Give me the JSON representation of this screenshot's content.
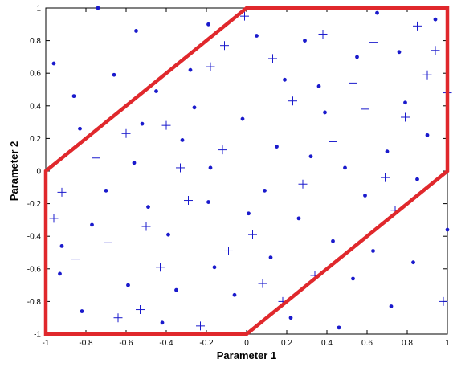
{
  "chart_data": {
    "type": "scatter",
    "title": "",
    "xlabel": "Parameter 1",
    "ylabel": "Parameter 2",
    "xlim": [
      -1,
      1
    ],
    "ylim": [
      -1,
      1
    ],
    "xticks": [
      "-1",
      "-0.8",
      "-0.6",
      "-0.4",
      "-0.2",
      "0",
      "0.2",
      "0.4",
      "0.6",
      "0.8",
      "1"
    ],
    "yticks": [
      "-1",
      "-0.8",
      "-0.6",
      "-0.4",
      "-0.2",
      "0",
      "0.2",
      "0.4",
      "0.6",
      "0.8",
      "1"
    ],
    "grid": false,
    "marker_color": "#1a1acc",
    "region_color": "#e0282c",
    "series": [
      {
        "marker": "dot",
        "points": [
          [
            -0.74,
            1.0
          ],
          [
            -0.19,
            0.9
          ],
          [
            -0.55,
            0.86
          ],
          [
            0.05,
            0.83
          ],
          [
            0.29,
            0.8
          ],
          [
            0.65,
            0.97
          ],
          [
            0.94,
            0.93
          ],
          [
            -0.96,
            0.66
          ],
          [
            -0.66,
            0.59
          ],
          [
            -0.28,
            0.62
          ],
          [
            0.19,
            0.56
          ],
          [
            0.36,
            0.52
          ],
          [
            0.55,
            0.7
          ],
          [
            0.76,
            0.73
          ],
          [
            -0.86,
            0.46
          ],
          [
            -0.45,
            0.49
          ],
          [
            -0.26,
            0.39
          ],
          [
            0.39,
            0.36
          ],
          [
            0.79,
            0.42
          ],
          [
            -0.83,
            0.26
          ],
          [
            -0.52,
            0.29
          ],
          [
            -0.02,
            0.32
          ],
          [
            0.15,
            0.15
          ],
          [
            -0.32,
            0.19
          ],
          [
            0.32,
            0.09
          ],
          [
            0.7,
            0.12
          ],
          [
            0.9,
            0.22
          ],
          [
            -0.56,
            0.05
          ],
          [
            -0.18,
            0.02
          ],
          [
            0.49,
            0.02
          ],
          [
            0.85,
            -0.05
          ],
          [
            -0.7,
            -0.12
          ],
          [
            -0.19,
            -0.19
          ],
          [
            0.09,
            -0.12
          ],
          [
            0.59,
            -0.15
          ],
          [
            -0.49,
            -0.22
          ],
          [
            -0.77,
            -0.33
          ],
          [
            0.01,
            -0.26
          ],
          [
            0.26,
            -0.29
          ],
          [
            -0.39,
            -0.39
          ],
          [
            -0.92,
            -0.46
          ],
          [
            -0.16,
            -0.59
          ],
          [
            0.12,
            -0.53
          ],
          [
            0.43,
            -0.43
          ],
          [
            0.63,
            -0.49
          ],
          [
            1.0,
            -0.36
          ],
          [
            -0.93,
            -0.63
          ],
          [
            -0.59,
            -0.7
          ],
          [
            -0.35,
            -0.73
          ],
          [
            -0.06,
            -0.76
          ],
          [
            0.53,
            -0.66
          ],
          [
            0.83,
            -0.56
          ],
          [
            -0.82,
            -0.86
          ],
          [
            0.72,
            -0.83
          ],
          [
            -0.42,
            -0.93
          ],
          [
            0.22,
            -0.9
          ],
          [
            0.46,
            -0.96
          ]
        ]
      },
      {
        "marker": "plus",
        "points": [
          [
            -0.01,
            0.95
          ],
          [
            -0.11,
            0.77
          ],
          [
            0.13,
            0.69
          ],
          [
            0.38,
            0.84
          ],
          [
            0.63,
            0.79
          ],
          [
            0.85,
            0.89
          ],
          [
            0.94,
            0.74
          ],
          [
            -0.18,
            0.64
          ],
          [
            0.53,
            0.54
          ],
          [
            0.9,
            0.59
          ],
          [
            0.23,
            0.43
          ],
          [
            -0.4,
            0.28
          ],
          [
            0.59,
            0.38
          ],
          [
            0.79,
            0.33
          ],
          [
            -0.6,
            0.23
          ],
          [
            -0.12,
            0.13
          ],
          [
            0.43,
            0.18
          ],
          [
            -0.75,
            0.08
          ],
          [
            -0.33,
            0.02
          ],
          [
            0.69,
            -0.04
          ],
          [
            -0.92,
            -0.13
          ],
          [
            -0.29,
            -0.18
          ],
          [
            0.28,
            -0.08
          ],
          [
            -0.96,
            -0.29
          ],
          [
            -0.5,
            -0.34
          ],
          [
            0.74,
            -0.24
          ],
          [
            0.03,
            -0.39
          ],
          [
            -0.69,
            -0.44
          ],
          [
            -0.09,
            -0.49
          ],
          [
            -0.85,
            -0.54
          ],
          [
            -0.43,
            -0.59
          ],
          [
            0.34,
            -0.64
          ],
          [
            0.08,
            -0.69
          ],
          [
            0.98,
            -0.8
          ],
          [
            -0.53,
            -0.85
          ],
          [
            0.18,
            -0.8
          ],
          [
            -0.64,
            -0.9
          ],
          [
            -0.23,
            -0.95
          ],
          [
            1.0,
            0.48
          ]
        ]
      }
    ],
    "region": [
      [
        0,
        1
      ],
      [
        1,
        1
      ],
      [
        1,
        0
      ],
      [
        0,
        -1
      ],
      [
        -1,
        -1
      ],
      [
        -1,
        0
      ]
    ]
  }
}
